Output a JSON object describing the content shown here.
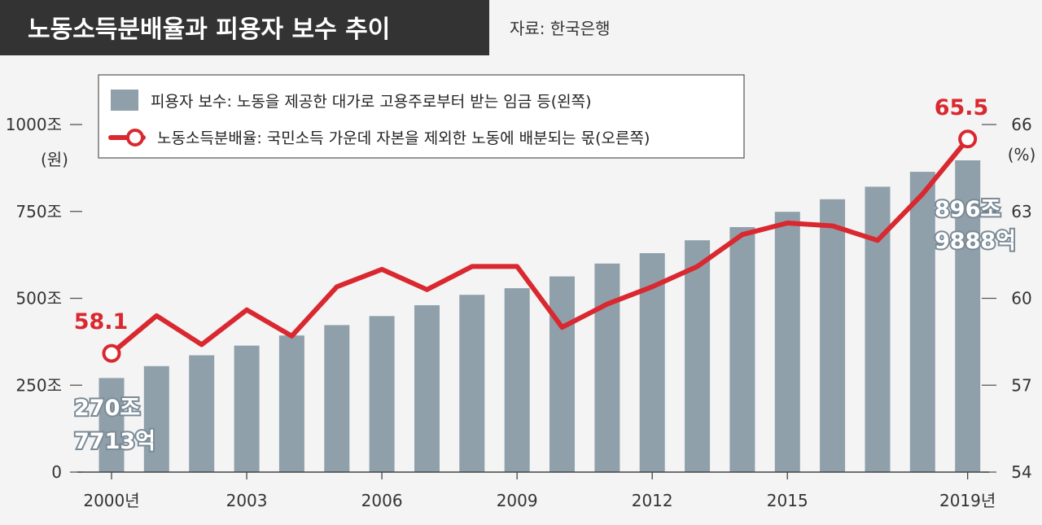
{
  "header": {
    "title": "노동소득분배율과 피용자 보수 추이",
    "source": "자료: 한국은행"
  },
  "colors": {
    "bar": "#8fa0ab",
    "line": "#d9282f",
    "title_bg": "#333333",
    "background": "#f4f4f4"
  },
  "chart_data": {
    "type": "bar",
    "title": "노동소득분배율과 피용자 보수 추이",
    "source": "자료: 한국은행",
    "x": [
      2000,
      2001,
      2002,
      2003,
      2004,
      2005,
      2006,
      2007,
      2008,
      2009,
      2010,
      2011,
      2012,
      2013,
      2014,
      2015,
      2016,
      2017,
      2018,
      2019
    ],
    "x_tick_labels": [
      {
        "x": 2000,
        "label": "2000년"
      },
      {
        "x": 2003,
        "label": "2003"
      },
      {
        "x": 2006,
        "label": "2006"
      },
      {
        "x": 2009,
        "label": "2009"
      },
      {
        "x": 2012,
        "label": "2012"
      },
      {
        "x": 2015,
        "label": "2015"
      },
      {
        "x": 2019,
        "label": "2019년"
      }
    ],
    "series": [
      {
        "name": "피용자 보수",
        "type": "bar",
        "axis": "left",
        "legend_label": "피용자 보수: 노동을 제공한 대가로 고용주로부터 받는 임금 등(왼쪽)",
        "values": [
          270.8,
          305,
          336,
          364,
          393,
          423,
          449,
          480,
          510,
          529,
          563,
          600,
          630,
          667,
          705,
          749,
          785,
          821,
          864,
          896.99
        ]
      },
      {
        "name": "노동소득분배율",
        "type": "line",
        "axis": "right",
        "legend_label": "노동소득분배율: 국민소득 가운데 자본을 제외한 노동에 배분되는 몫(오른쪽)",
        "values": [
          58.1,
          59.4,
          58.4,
          59.6,
          58.7,
          60.4,
          61.0,
          60.3,
          61.1,
          61.1,
          59.0,
          59.8,
          60.4,
          61.1,
          62.2,
          62.6,
          62.5,
          62.0,
          63.6,
          65.5
        ]
      }
    ],
    "y_left": {
      "unit": "(원)",
      "range": [
        0,
        1000
      ],
      "ticks": [
        {
          "value": 0,
          "label": "0"
        },
        {
          "value": 250,
          "label": "250조"
        },
        {
          "value": 500,
          "label": "500조"
        },
        {
          "value": 750,
          "label": "750조"
        },
        {
          "value": 1000,
          "label": "1000조"
        }
      ]
    },
    "y_right": {
      "unit": "(%)",
      "range": [
        54,
        66
      ],
      "ticks": [
        54,
        57,
        60,
        63,
        66
      ]
    },
    "annotations": {
      "line_start": "58.1",
      "line_end": "65.5",
      "bar_start_line1": "270조",
      "bar_start_line2": "7713억",
      "bar_end_line1": "896조",
      "bar_end_line2": "9888억"
    },
    "legend_position": "top-center",
    "grid": false
  }
}
